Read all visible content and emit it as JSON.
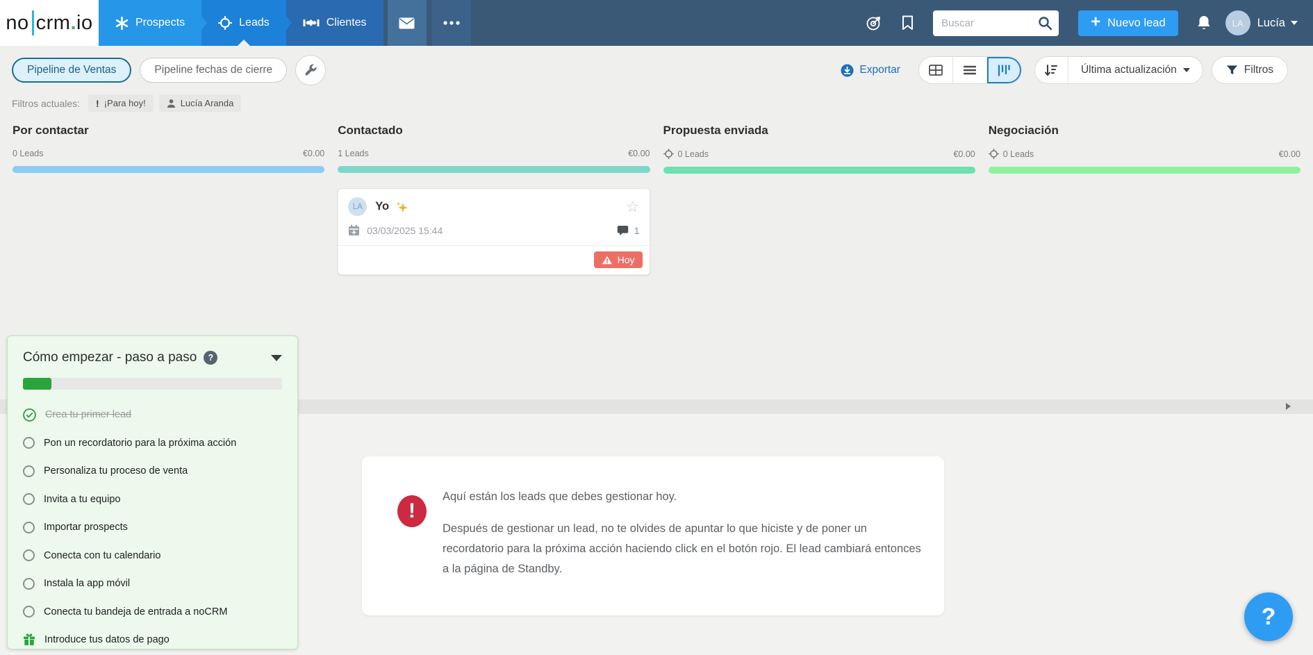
{
  "nav": {
    "logo": {
      "no": "no",
      "crm": "crm",
      "dot": ".",
      "io": "io"
    },
    "tabs": [
      {
        "label": "Prospects"
      },
      {
        "label": "Leads"
      },
      {
        "label": "Clientes"
      }
    ],
    "search": {
      "placeholder": "Buscar"
    },
    "new_lead_label": "Nuevo lead",
    "user": {
      "name": "Lucía",
      "initials": "LA"
    }
  },
  "toolbar": {
    "pipelines": [
      {
        "label": "Pipeline de Ventas"
      },
      {
        "label": "Pipeline fechas de cierre"
      }
    ],
    "export_label": "Exportar",
    "sort_label": "Última actualización",
    "filters_label": "Filtros"
  },
  "filters": {
    "label": "Filtros actuales:",
    "chips": [
      {
        "label": "¡Para hoy!"
      },
      {
        "label": "Lucía Aranda"
      }
    ]
  },
  "kanban": {
    "columns": [
      {
        "title": "Por contactar",
        "count": "0 Leads",
        "amount": "€0.00",
        "bar_color": "#8cccf1"
      },
      {
        "title": "Contactado",
        "count": "1 Leads",
        "amount": "€0.00",
        "bar_color": "#7ed8c9"
      },
      {
        "title": "Propuesta enviada",
        "count": "0 Leads",
        "amount": "€0.00",
        "bar_color": "#6fe0b1"
      },
      {
        "title": "Negociación",
        "count": "0 Leads",
        "amount": "€0.00",
        "bar_color": "#8ef29d"
      }
    ]
  },
  "lead_card": {
    "initials": "LA",
    "title": "Yo",
    "datetime": "03/03/2025 15:44",
    "comment_count": "1",
    "badge": "Hoy"
  },
  "onboarding": {
    "title": "Cómo empezar - paso a paso",
    "help_label": "?",
    "progress_percent": 11,
    "items": [
      {
        "label": "Crea tu primer lead",
        "state": "done"
      },
      {
        "label": "Pon un recordatorio para la próxima acción",
        "state": "todo"
      },
      {
        "label": "Personaliza tu proceso de venta",
        "state": "todo"
      },
      {
        "label": "Invita a tu equipo",
        "state": "todo"
      },
      {
        "label": "Importar prospects",
        "state": "todo"
      },
      {
        "label": "Conecta con tu calendario",
        "state": "todo"
      },
      {
        "label": "Instala la app móvil",
        "state": "todo"
      },
      {
        "label": "Conecta tu bandeja de entrada a noCRM",
        "state": "todo"
      },
      {
        "label": "Introduce tus datos de pago",
        "state": "gift"
      }
    ]
  },
  "info_box": {
    "line1": "Aquí están los leads que debes gestionar hoy.",
    "line2": "Después de gestionar un lead, no te olvides de apuntar lo que hiciste y de poner un recordatorio para la próxima acción haciendo click en el botón rojo. El lead cambiará entonces a la página de Standby."
  },
  "help_button_label": "?"
}
